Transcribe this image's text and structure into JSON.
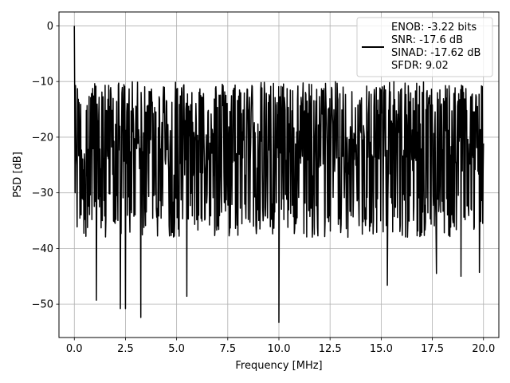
{
  "chart_data": {
    "type": "line",
    "title": "",
    "xlabel": "Frequency [MHz]",
    "ylabel": "PSD [dB]",
    "xlim": [
      -0.75,
      20.75
    ],
    "ylim": [
      -56,
      2.5
    ],
    "xticks": [
      0.0,
      2.5,
      5.0,
      7.5,
      10.0,
      12.5,
      15.0,
      17.5,
      20.0
    ],
    "xtick_labels": [
      "0.0",
      "2.5",
      "5.0",
      "7.5",
      "10.0",
      "12.5",
      "15.0",
      "17.5",
      "20.0"
    ],
    "yticks": [
      0,
      -10,
      -20,
      -30,
      -40,
      -50
    ],
    "ytick_labels": [
      "0",
      "−10",
      "−20",
      "−30",
      "−40",
      "−50"
    ],
    "grid": true,
    "line_color": "#000000",
    "legend_placement": "upper-right",
    "legend_lines": [
      "ENOB: -3.22 bits",
      "SNR: -17.6 dB",
      "SINAD: -17.62 dB",
      "SFDR: 9.02"
    ],
    "series": [
      {
        "x_start": 0.0,
        "x_end": 20.0,
        "points": 1024,
        "band_top_db": -13,
        "band_center_db": -22,
        "band_bottom_db": -34,
        "peak": {
          "x": 0.0,
          "y": 0.0
        },
        "notable_minima": [
          {
            "x": 1.08,
            "y": -49.3
          },
          {
            "x": 2.25,
            "y": -50.8
          },
          {
            "x": 2.5,
            "y": -50.8
          },
          {
            "x": 3.25,
            "y": -52.4
          },
          {
            "x": 5.5,
            "y": -48.6
          },
          {
            "x": 10.0,
            "y": -53.3
          },
          {
            "x": 15.3,
            "y": -46.6
          },
          {
            "x": 17.7,
            "y": -44.5
          },
          {
            "x": 18.9,
            "y": -45.0
          },
          {
            "x": 19.8,
            "y": -44.3
          }
        ]
      }
    ]
  }
}
